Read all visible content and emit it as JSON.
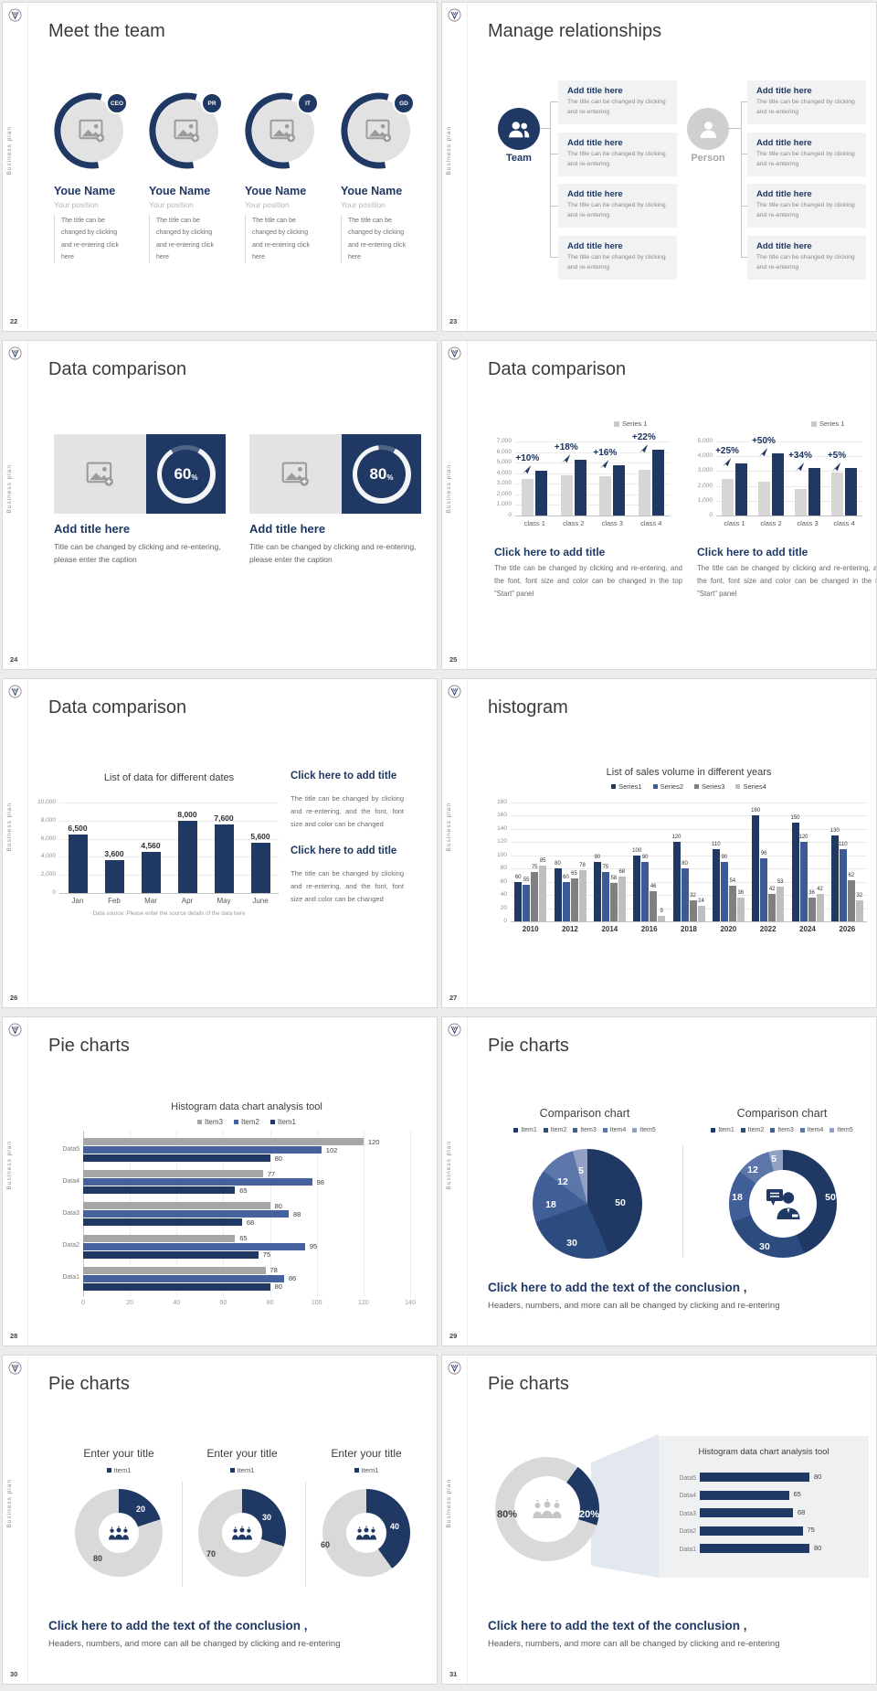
{
  "page_bg": "#ececec",
  "accent": "#1f3864",
  "common": {
    "sidebar_text": "Business plan",
    "conclusion_title": "Click here to add the text of the conclusion ,",
    "conclusion_body": "Headers, numbers, and more can all be changed by clicking and re-entering"
  },
  "slides": [
    {
      "page": "22",
      "title": "Meet the team",
      "members": [
        {
          "badge": "CEO",
          "name": "Youe Name",
          "position": "Your position",
          "body": "The title can be changed by clicking and re-entering click here"
        },
        {
          "badge": "PR",
          "name": "Youe Name",
          "position": "Your position",
          "body": "The title can be changed by clicking and re-entering click here"
        },
        {
          "badge": "IT",
          "name": "Youe Name",
          "position": "Your position",
          "body": "The title can be changed by clicking and re-entering click here"
        },
        {
          "badge": "GD",
          "name": "Youe Name",
          "position": "Your position",
          "body": "The title can be changed by clicking and re-entering click here"
        }
      ]
    },
    {
      "page": "23",
      "title": "Manage relationships",
      "team_label": "Team",
      "person_label": "Person",
      "box_title": "Add title here",
      "box_body": "The title can be changed by clicking and re-entering"
    },
    {
      "page": "24",
      "title": "Data comparison",
      "item_title": "Add title here",
      "item_body": "Title can be changed by clicking and re-entering, please enter the caption",
      "percents": [
        "60",
        "80"
      ],
      "percent_sign": "%"
    },
    {
      "page": "25",
      "title": "Data comparison",
      "caption_title": "Click here to add title",
      "caption_body": "The title can be changed by clicking and re-entering, and the font, font size and color can be changed in the top \"Start\" panel"
    },
    {
      "page": "26",
      "title": "Data comparison",
      "caption_title": "Click here to add title",
      "caption_body": "The title can be changed by clicking and re-entering, and the font, font size and color can be changed"
    },
    {
      "page": "27",
      "title": "histogram"
    },
    {
      "page": "28",
      "title": "Pie charts"
    },
    {
      "page": "29",
      "title": "Pie charts"
    },
    {
      "page": "30",
      "title": "Pie charts"
    },
    {
      "page": "31",
      "title": "Pie charts"
    }
  ],
  "chart_data": [
    {
      "type": "bar",
      "slide": "25",
      "legend": [
        "Series 1"
      ],
      "categories": [
        "class 1",
        "class 2",
        "class 3",
        "class 4"
      ],
      "series": [
        {
          "name": "Series 1",
          "color": "#d6d6d6",
          "values": [
            3500,
            3800,
            3700,
            4300
          ]
        },
        {
          "name": "",
          "color": "#1f3864",
          "values": [
            4200,
            5300,
            4800,
            6200
          ]
        }
      ],
      "annotations": [
        "+10%",
        "+18%",
        "+16%",
        "+22%"
      ],
      "ylim": [
        0,
        7000
      ],
      "ytick_step": 1000,
      "grid": true
    },
    {
      "type": "bar",
      "slide": "25",
      "legend": [
        "Series 1"
      ],
      "categories": [
        "class 1",
        "class 2",
        "class 3",
        "class 4"
      ],
      "series": [
        {
          "name": "Series 1",
          "color": "#d6d6d6",
          "values": [
            2500,
            2300,
            1800,
            2900
          ]
        },
        {
          "name": "",
          "color": "#1f3864",
          "values": [
            3500,
            4200,
            3200,
            3200
          ]
        }
      ],
      "annotations": [
        "+25%",
        "+50%",
        "+34%",
        "+5%"
      ],
      "ylim": [
        0,
        5000
      ],
      "ytick_step": 1000,
      "grid": true
    },
    {
      "type": "bar",
      "slide": "26",
      "title": "List of data for different dates",
      "categories": [
        "Jan",
        "Feb",
        "Mar",
        "Apr",
        "May",
        "June"
      ],
      "series": [
        {
          "name": "",
          "color": "#1f3864",
          "values": [
            6500,
            3600,
            4560,
            8000,
            7600,
            5600
          ]
        }
      ],
      "data_labels": [
        "6,500",
        "3,600",
        "4,560",
        "8,000",
        "7,600",
        "5,600"
      ],
      "ylim": [
        0,
        10000
      ],
      "ytick_step": 2000,
      "grid": true,
      "source_note": "Data source: Please enter the source details of the data here"
    },
    {
      "type": "bar",
      "slide": "27",
      "title": "List of sales volume in different years",
      "legend": [
        "Series1",
        "Series2",
        "Series3",
        "Series4"
      ],
      "categories": [
        "2010",
        "2012",
        "2014",
        "2016",
        "2018",
        "2020",
        "2022",
        "2024",
        "2026"
      ],
      "series": [
        {
          "name": "Series1",
          "color": "#1f3864",
          "values": [
            60,
            80,
            90,
            100,
            120,
            110,
            160,
            150,
            130
          ]
        },
        {
          "name": "Series2",
          "color": "#3c5a96",
          "values": [
            55,
            60,
            75,
            90,
            80,
            90,
            96,
            120,
            110
          ]
        },
        {
          "name": "Series3",
          "color": "#808080",
          "values": [
            75,
            65,
            58,
            46,
            32,
            54,
            42,
            36,
            62
          ]
        },
        {
          "name": "Series4",
          "color": "#bfbfbf",
          "values": [
            85,
            78,
            68,
            9,
            24,
            36,
            53,
            42,
            32
          ]
        }
      ],
      "ylim": [
        0,
        180
      ],
      "ytick_step": 20,
      "grid": true,
      "show_values": true
    },
    {
      "type": "bar-horizontal",
      "slide": "28",
      "title": "Histogram data chart analysis tool",
      "legend": [
        "Item3",
        "Item2",
        "Item1"
      ],
      "categories": [
        "Data5",
        "Data4",
        "Data3",
        "Data2",
        "Data1"
      ],
      "series": [
        {
          "name": "Item3",
          "color": "#a6a6a6",
          "values": [
            120,
            77,
            80,
            65,
            78
          ]
        },
        {
          "name": "Item2",
          "color": "#45619e",
          "values": [
            102,
            98,
            88,
            95,
            86
          ]
        },
        {
          "name": "Item1",
          "color": "#1f3864",
          "values": [
            80,
            65,
            68,
            75,
            80
          ]
        }
      ],
      "xlim": [
        0,
        140
      ],
      "xtick_step": 20,
      "grid": true
    },
    {
      "type": "pie",
      "slide": "29",
      "title": "Comparison chart",
      "legend": [
        "Item1",
        "Item2",
        "Item3",
        "Item4",
        "Item5"
      ],
      "values": [
        50,
        30,
        18,
        12,
        5
      ],
      "colors": [
        "#1f3864",
        "#2c4b7e",
        "#405e97",
        "#5d76aa",
        "#92a0c3"
      ]
    },
    {
      "type": "donut",
      "slide": "29",
      "title": "Comparison chart",
      "legend": [
        "Item1",
        "Item2",
        "Item3",
        "Item4",
        "Item5"
      ],
      "values": [
        50,
        30,
        18,
        12,
        5
      ],
      "colors": [
        "#1f3864",
        "#2c4b7e",
        "#405e97",
        "#5d76aa",
        "#92a0c3"
      ],
      "center_icon": "consultant-icon"
    },
    {
      "type": "donut",
      "slide": "30",
      "title": "Enter your title",
      "legend": [
        "Item1"
      ],
      "values": [
        20,
        80
      ],
      "colors": [
        "#1f3864",
        "#d9d9d9"
      ],
      "center_icon": "team-group-icon"
    },
    {
      "type": "donut",
      "slide": "30",
      "title": "Enter your title",
      "legend": [
        "Item1"
      ],
      "values": [
        30,
        70
      ],
      "colors": [
        "#1f3864",
        "#d9d9d9"
      ],
      "center_icon": "team-group-icon"
    },
    {
      "type": "donut",
      "slide": "30",
      "title": "Enter your title",
      "legend": [
        "Item1"
      ],
      "values": [
        40,
        60
      ],
      "colors": [
        "#1f3864",
        "#d9d9d9"
      ],
      "center_icon": "team-group-icon"
    },
    {
      "type": "donut",
      "slide": "31",
      "values": [
        20,
        80
      ],
      "labels": [
        "20%",
        "80%"
      ],
      "colors": [
        "#1f3864",
        "#d9d9d9"
      ],
      "center_icon": "audience-icon"
    },
    {
      "type": "bar-horizontal",
      "slide": "31",
      "title": "Histogram data chart analysis tool",
      "categories": [
        "Data5",
        "Data4",
        "Data3",
        "Data2",
        "Data1"
      ],
      "series": [
        {
          "name": "",
          "color": "#1f3864",
          "values": [
            80,
            65,
            68,
            75,
            80
          ]
        }
      ],
      "xlim": [
        0,
        90
      ]
    }
  ]
}
